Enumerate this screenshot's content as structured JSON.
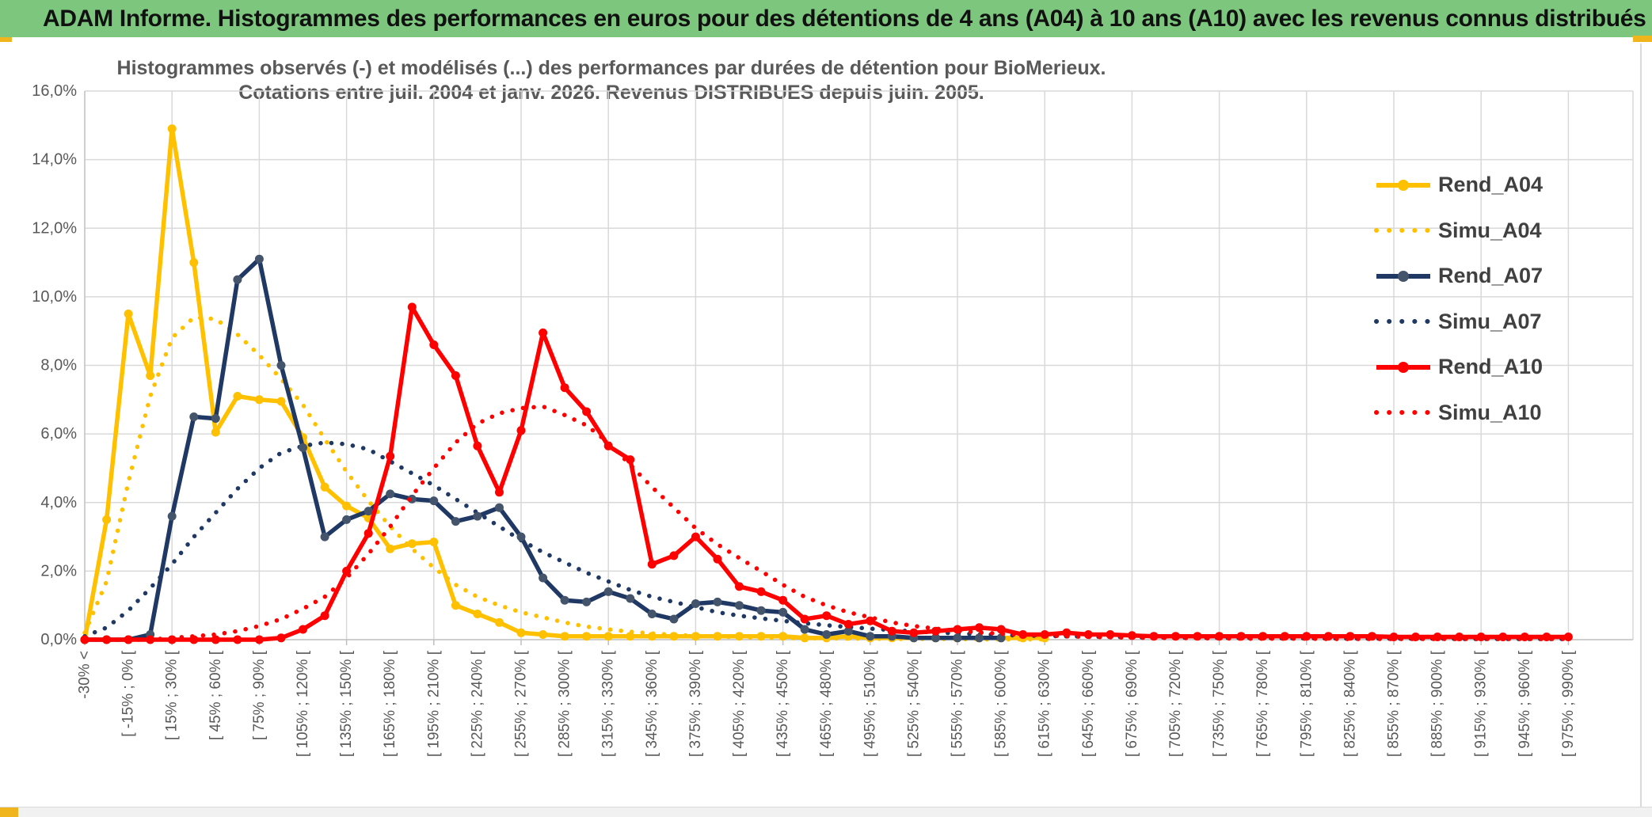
{
  "banner": {
    "title": "ADAM Informe. Histogrammes des performances en euros pour des détentions de 4 ans (A04) à 10 ans (A10) avec les revenus connus distribués"
  },
  "chart": {
    "title_line1": "Histogrammes observés (-) et modélisés (...) des performances par durées de détention pour BioMerieux.",
    "title_line2": "Cotations entre juil. 2004 et janv. 2026. Revenus DISTRIBUES depuis juin. 2005.",
    "y_ticks": [
      "0,0%",
      "2,0%",
      "4,0%",
      "6,0%",
      "8,0%",
      "10,0%",
      "12,0%",
      "14,0%",
      "16,0%"
    ]
  },
  "colors": {
    "banner_bg": "#7dc67e",
    "gold_accent": "#f0b41c",
    "title_text": "#595959",
    "axis_text": "#595959",
    "grid": "#d9d9d9",
    "axis_line": "#bfbfbf",
    "a04": "#ffc000",
    "a07": "#1f3864",
    "a07_marker": "#44546a",
    "a10": "#ff0000"
  },
  "chart_data": {
    "type": "line",
    "title": "Histogrammes observés (-) et modélisés (...) des performances par durées de détention pour BioMerieux. Cotations entre juil. 2004 et janv. 2026. Revenus DISTRIBUES depuis juin. 2005.",
    "ylabel": "",
    "xlabel": "",
    "ylim": [
      0,
      16
    ],
    "y_tick_step": 2,
    "grid": true,
    "legend_position": "right",
    "n_categories": 69,
    "label_every": 2,
    "x_labels": [
      "-30% <",
      "[ -15% ; 0% [",
      "[ 15% ; 30% [",
      "[ 45% ; 60% [",
      "[ 75% ; 90% [",
      "[ 105% ; 120% [",
      "[ 135% ; 150% [",
      "[ 165% ; 180% [",
      "[ 195% ; 210% [",
      "[ 225% ; 240% [",
      "[ 255% ; 270% [",
      "[ 285% ; 300% [",
      "[ 315% ; 330% [",
      "[ 345% ; 360% [",
      "[ 375% ; 390% [",
      "[ 405% ; 420% [",
      "[ 435% ; 450% [",
      "[ 465% ; 480% [",
      "[ 495% ; 510% [",
      "[ 525% ; 540% [",
      "[ 555% ; 570% [",
      "[ 585% ; 600% [",
      "[ 615% ; 630% [",
      "[ 645% ; 660% [",
      "[ 675% ; 690% [",
      "[ 705% ; 720% [",
      "[ 735% ; 750% [",
      "[ 765% ; 780% [",
      "[ 795% ; 810% [",
      "[ 825% ; 840% [",
      "[ 855% ; 870% [",
      "[ 885% ; 900% [",
      "[ 915% ; 930% [",
      "[ 945% ; 960% [",
      "[ 975% ; 990% ["
    ],
    "series": [
      {
        "name": "Rend_A04",
        "style": "solid",
        "color": "#ffc000",
        "marker_color": "#ffc000",
        "values": [
          0,
          3.5,
          9.5,
          7.7,
          14.9,
          11,
          6.05,
          7.1,
          7,
          6.95,
          5.9,
          4.45,
          3.9,
          3.55,
          2.65,
          2.8,
          2.85,
          1,
          0.75,
          0.5,
          0.2,
          0.15,
          0.1,
          0.1,
          0.1,
          0.1,
          0.1,
          0.1,
          0.1,
          0.1,
          0.1,
          0.1,
          0.1,
          0.05,
          0.05,
          0.1,
          0.05,
          0.05,
          0.05,
          0.05,
          0.05,
          0.05,
          0.05,
          0.05,
          0.05,
          null,
          null,
          null,
          null,
          null,
          null,
          null,
          null,
          null,
          null,
          null,
          null,
          null,
          null,
          null,
          null,
          null,
          null,
          null,
          null,
          null,
          null,
          null,
          null
        ]
      },
      {
        "name": "Simu_A04",
        "style": "dotted",
        "color": "#ffc000",
        "values": [
          0.2,
          1.7,
          4.6,
          7.1,
          8.8,
          9.4,
          9.35,
          8.9,
          8.3,
          7.6,
          6.85,
          5.85,
          4.9,
          4.05,
          3.3,
          2.65,
          2.1,
          1.6,
          1.25,
          1,
          0.8,
          0.65,
          0.5,
          0.38,
          0.3,
          0.23,
          0.18,
          0.14,
          0.11,
          0.09,
          0.07,
          0.06,
          0.05,
          0.04,
          0.04,
          0.03,
          0.03,
          0.02,
          0.02,
          0.02,
          0.02,
          0.01,
          0.01,
          0.01,
          0.01,
          null,
          null,
          null,
          null,
          null,
          null,
          null,
          null,
          null,
          null,
          null,
          null,
          null,
          null,
          null,
          null,
          null,
          null,
          null,
          null,
          null,
          null,
          null,
          null
        ]
      },
      {
        "name": "Rend_A07",
        "style": "solid",
        "color": "#1f3864",
        "marker_color": "#44546a",
        "values": [
          0,
          0,
          0,
          0.15,
          3.6,
          6.5,
          6.45,
          10.5,
          11.1,
          8,
          5.6,
          3,
          3.5,
          3.75,
          4.25,
          4.1,
          4.05,
          3.45,
          3.6,
          3.85,
          3,
          1.8,
          1.15,
          1.1,
          1.4,
          1.2,
          0.75,
          0.6,
          1.05,
          1.1,
          1,
          0.85,
          0.8,
          0.3,
          0.15,
          0.25,
          0.1,
          0.1,
          0.05,
          0.05,
          0.05,
          0.05,
          0.05,
          null,
          null,
          null,
          null,
          null,
          null,
          null,
          null,
          null,
          null,
          null,
          null,
          null,
          null,
          null,
          null,
          null,
          null,
          null,
          null,
          null,
          null,
          null,
          null,
          null
        ]
      },
      {
        "name": "Simu_A07",
        "style": "dotted",
        "color": "#1f3864",
        "values": [
          0.1,
          0.35,
          0.85,
          1.5,
          2.2,
          3,
          3.7,
          4.4,
          5,
          5.45,
          5.65,
          5.75,
          5.7,
          5.55,
          5.2,
          4.85,
          4.5,
          4.1,
          3.7,
          3.3,
          2.9,
          2.55,
          2.25,
          1.95,
          1.7,
          1.45,
          1.25,
          1.1,
          0.95,
          0.8,
          0.7,
          0.62,
          0.55,
          0.48,
          0.42,
          0.37,
          0.32,
          0.28,
          0.24,
          0.21,
          0.18,
          0.16,
          0.14,
          0.12,
          0.11,
          0.1,
          0.09,
          0.08,
          0.07,
          0.07,
          0.06,
          0.06,
          0.05,
          0.05,
          0.05,
          0.04,
          0.04,
          0.04,
          0.03,
          0.03,
          0.03,
          0.03,
          0.03,
          0.02,
          0.02,
          0.02,
          0.02,
          0.02,
          0.02
        ]
      },
      {
        "name": "Rend_A10",
        "style": "solid",
        "color": "#ff0000",
        "marker_color": "#ff0000",
        "values": [
          0,
          0,
          0,
          0,
          0,
          0,
          0,
          0,
          0,
          0.05,
          0.3,
          0.7,
          2,
          3.1,
          5.35,
          9.7,
          8.6,
          7.7,
          5.65,
          4.3,
          6.1,
          8.95,
          7.35,
          6.65,
          5.65,
          5.25,
          2.2,
          2.45,
          3,
          2.35,
          1.55,
          1.4,
          1.15,
          0.6,
          0.7,
          0.45,
          0.55,
          0.25,
          0.2,
          0.25,
          0.3,
          0.35,
          0.3,
          0.15,
          0.15,
          0.2,
          0.15,
          0.15,
          0.12,
          0.1,
          0.1,
          0.1,
          0.1,
          0.1,
          0.1,
          0.1,
          0.1,
          0.1,
          0.1,
          0.1,
          0.08,
          0.08,
          0.08,
          0.08,
          0.08,
          0.08,
          0.08,
          0.08,
          0.08
        ]
      },
      {
        "name": "Simu_A10",
        "style": "dotted",
        "color": "#ff0000",
        "values": [
          0,
          0,
          0,
          0,
          0.05,
          0.1,
          0.15,
          0.25,
          0.4,
          0.6,
          0.9,
          1.25,
          1.8,
          2.5,
          3.3,
          4.2,
          5,
          5.75,
          6.3,
          6.6,
          6.75,
          6.8,
          6.55,
          6.25,
          5.75,
          5.1,
          4.45,
          3.85,
          3.25,
          2.78,
          2.38,
          2,
          1.6,
          1.25,
          1,
          0.8,
          0.65,
          0.5,
          0.4,
          0.32,
          0.26,
          0.21,
          0.17,
          0.14,
          0.12,
          0.1,
          0.08,
          0.07,
          0.06,
          0.05,
          0.05,
          0.04,
          0.04,
          0.03,
          0.03,
          0.03,
          0.03,
          0.02,
          0.02,
          0.02,
          0.02,
          0.02,
          0.02,
          0.02,
          0.02,
          0.02,
          0.02,
          0.02,
          0.02
        ]
      }
    ]
  },
  "legend": {
    "items": [
      "Rend_A04",
      "Simu_A04",
      "Rend_A07",
      "Simu_A07",
      "Rend_A10",
      "Simu_A10"
    ]
  }
}
